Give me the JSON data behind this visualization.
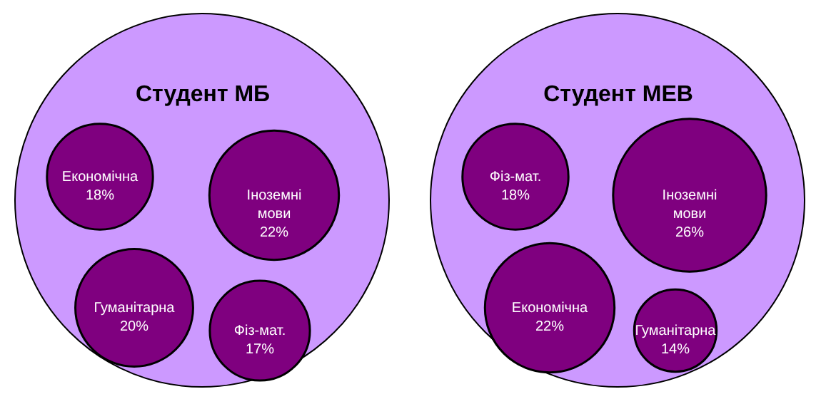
{
  "chart_data": [
    {
      "type": "other",
      "title": "Студент МБ",
      "categories": [
        "Економічна",
        "Іноземні мови",
        "Гуманітарна",
        "Фіз-мат."
      ],
      "values": [
        18,
        22,
        20,
        17
      ],
      "value_labels": [
        "18%",
        "22%",
        "20%",
        "17%"
      ],
      "colors": [
        "#7f007f",
        "#7f007f",
        "#7f007f",
        "#7f007f"
      ]
    },
    {
      "type": "other",
      "title": "Студент МЕВ",
      "categories": [
        "Фіз-мат.",
        "Іноземні мови",
        "Економічна",
        "Гуманітарна"
      ],
      "values": [
        18,
        26,
        22,
        14
      ],
      "value_labels": [
        "18%",
        "26%",
        "22%",
        "14%"
      ],
      "colors": [
        "#7f007f",
        "#7f007f",
        "#7f007f",
        "#7f007f"
      ]
    }
  ]
}
